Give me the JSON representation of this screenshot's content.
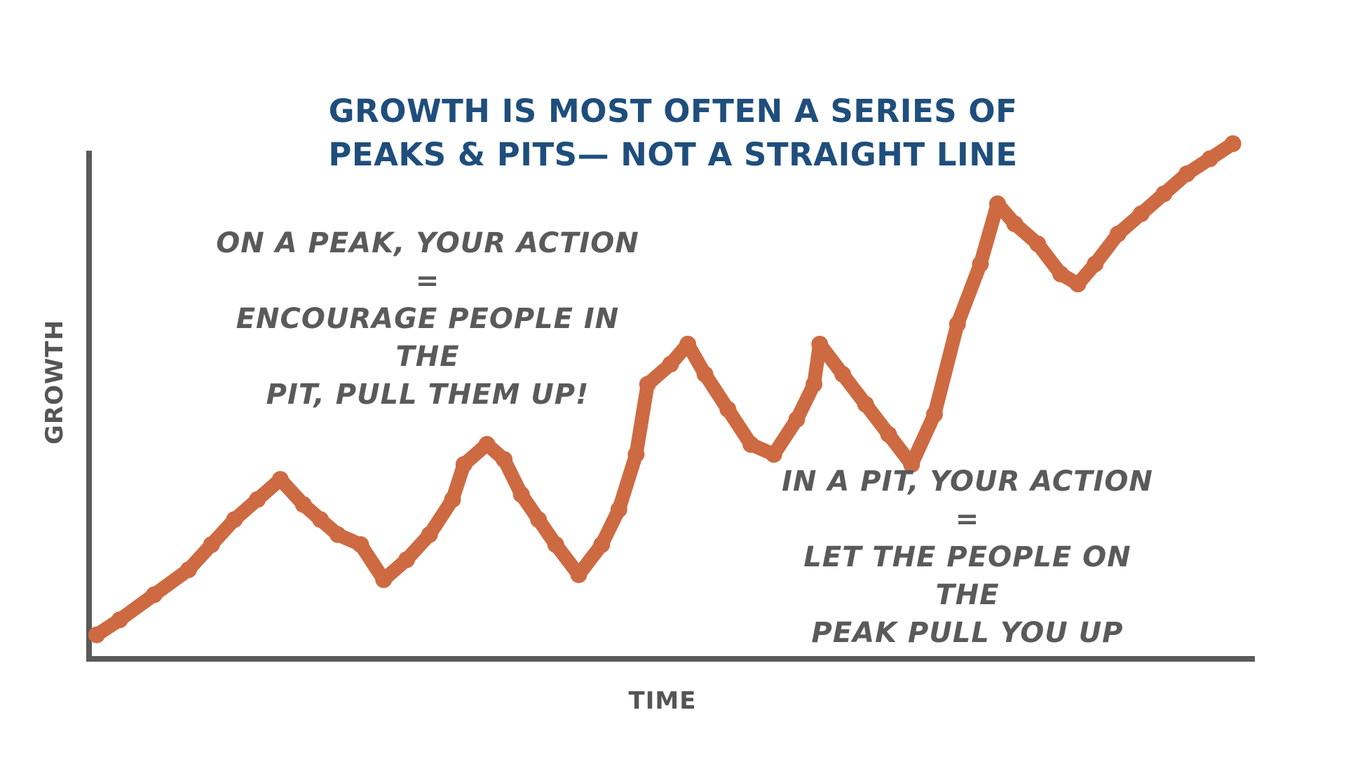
{
  "title": {
    "line1": "GROWTH IS MOST OFTEN A SERIES OF",
    "line2": "PEAKS & PITS— NOT A STRAIGHT LINE"
  },
  "annotations": {
    "peak": {
      "line1": "ON A PEAK, YOUR ACTION =",
      "line2": "ENCOURAGE PEOPLE IN THE",
      "line3": "PIT, PULL THEM UP!"
    },
    "pit": {
      "line1": "IN A PIT, YOUR ACTION =",
      "line2": "LET THE PEOPLE ON THE",
      "line3": "PEAK PULL YOU UP"
    }
  },
  "axes": {
    "x_label": "TIME",
    "y_label": "GROWTH"
  },
  "colors": {
    "title": "#1f4e7c",
    "annotation_text": "#5a5a5a",
    "axis": "#5a5a5a",
    "growth_line": "#cd6a42"
  },
  "chart_data": {
    "type": "line",
    "xlabel": "TIME",
    "ylabel": "GROWTH",
    "xlim": [
      0,
      100
    ],
    "ylim": [
      0,
      100
    ],
    "x": [
      0,
      2,
      5,
      8,
      10,
      12,
      14,
      16,
      18,
      19.5,
      21,
      23,
      25,
      27,
      29,
      31,
      32,
      34,
      35.5,
      37,
      38.5,
      40,
      42,
      44,
      45.5,
      47,
      48,
      50,
      51.5,
      53,
      55,
      57,
      59,
      61,
      62.5,
      63,
      65,
      67,
      69,
      71,
      73,
      75,
      77,
      78.5,
      80,
      82,
      84,
      85.5,
      87,
      89,
      91,
      93,
      95,
      97,
      99
    ],
    "y": [
      2,
      5,
      10,
      15,
      20,
      25,
      29,
      33,
      28,
      25,
      22,
      20,
      13,
      17,
      22,
      29,
      36,
      40,
      37,
      30,
      25,
      20,
      14,
      20,
      27,
      38,
      52,
      56,
      60,
      54,
      47,
      40,
      38,
      45,
      52,
      60,
      54,
      48,
      42,
      36,
      46,
      64,
      76,
      88,
      84,
      80,
      74,
      72,
      76,
      82,
      86,
      90,
      94,
      97,
      100
    ]
  }
}
